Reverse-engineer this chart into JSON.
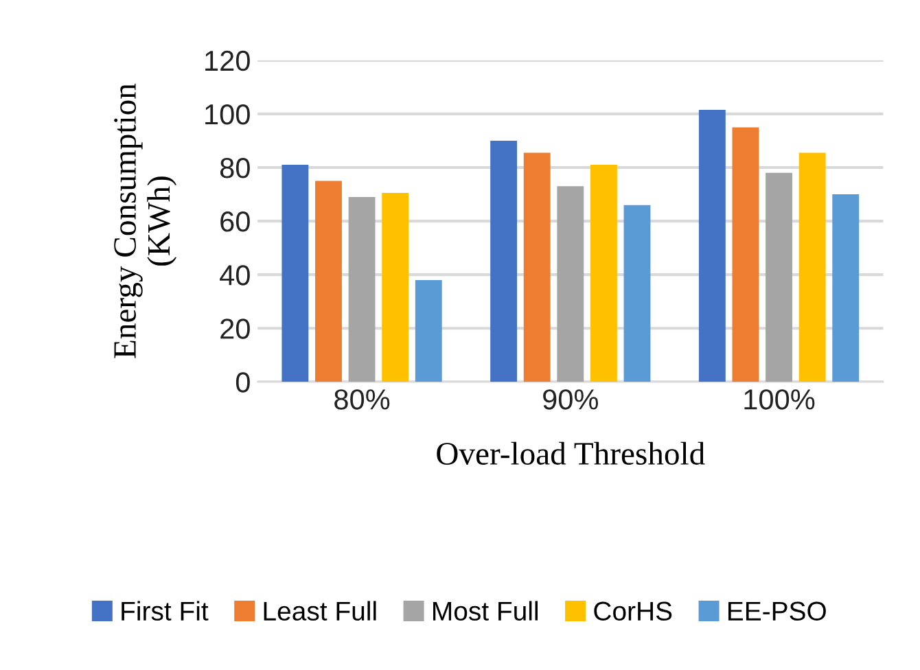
{
  "chart_data": {
    "type": "bar",
    "xlabel": "Over-load Threshold",
    "ylabel": "Energy Consumption\n(KWh)",
    "categories": [
      "80%",
      "90%",
      "100%"
    ],
    "series": [
      {
        "name": "First Fit",
        "color": "#4472c4",
        "values": [
          81,
          90,
          101.5
        ]
      },
      {
        "name": "Least Full",
        "color": "#ed7d31",
        "values": [
          75,
          85.5,
          95
        ]
      },
      {
        "name": "Most Full",
        "color": "#a5a5a5",
        "values": [
          69,
          73,
          78
        ]
      },
      {
        "name": "CorHS",
        "color": "#ffc000",
        "values": [
          70.5,
          81,
          85.5
        ]
      },
      {
        "name": "EE-PSO",
        "color": "#5b9bd5",
        "values": [
          38,
          66,
          70
        ]
      }
    ],
    "ylim": [
      0,
      120
    ],
    "yticks": [
      0,
      20,
      40,
      60,
      80,
      100,
      120
    ],
    "grid": "y",
    "legend": "bottom"
  }
}
